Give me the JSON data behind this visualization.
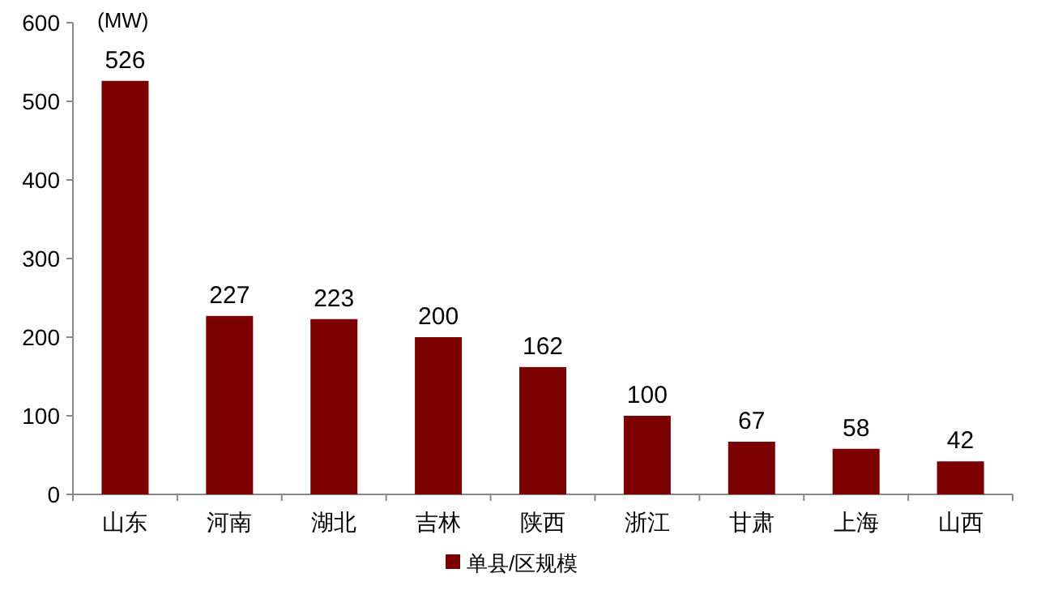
{
  "chart_data": {
    "type": "bar",
    "ylabel": "(MW)",
    "categories": [
      "山东",
      "河南",
      "湖北",
      "吉林",
      "陕西",
      "浙江",
      "甘肃",
      "上海",
      "山西"
    ],
    "series": [
      {
        "name": "单县/区规模",
        "color": "#7b0000",
        "values": [
          526,
          227,
          223,
          200,
          162,
          100,
          67,
          58,
          42
        ]
      }
    ],
    "ylim": [
      0,
      600
    ],
    "yticks": [
      0,
      100,
      200,
      300,
      400,
      500,
      600
    ],
    "data_labels": true,
    "legend": "bottom",
    "grid": false
  }
}
